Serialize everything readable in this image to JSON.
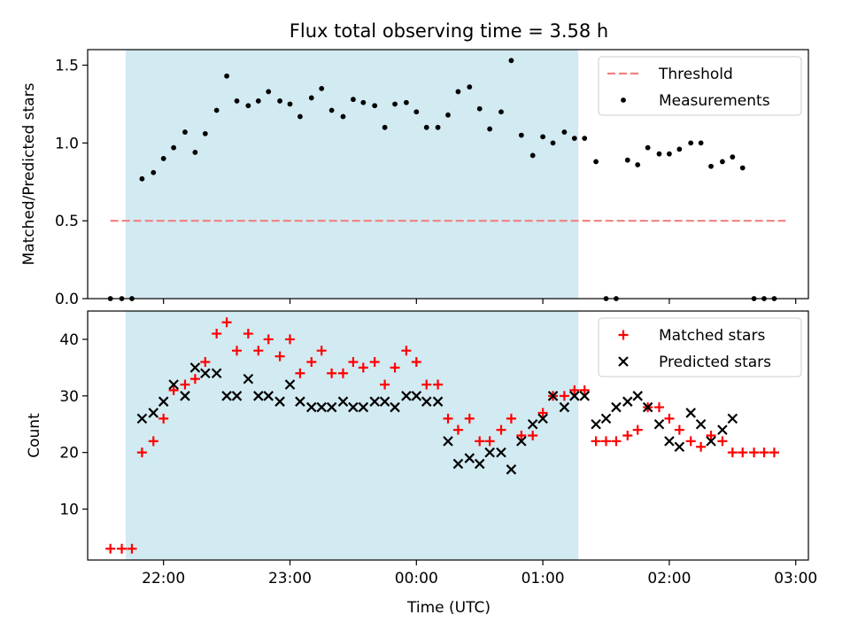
{
  "chart_data": {
    "type": "scatter",
    "title": "Flux total observing time = 3.58 h",
    "xlabel": "Time (UTC)",
    "x_unit": "hours UTC (values >= 24 are after midnight)",
    "xlim": [
      21.4,
      27.1
    ],
    "x_ticks": [
      {
        "value": 22,
        "label": "22:00"
      },
      {
        "value": 23,
        "label": "23:00"
      },
      {
        "value": 24,
        "label": "00:00"
      },
      {
        "value": 25,
        "label": "01:00"
      },
      {
        "value": 26,
        "label": "02:00"
      },
      {
        "value": 27,
        "label": "03:00"
      }
    ],
    "shaded_interval": {
      "start": 21.7,
      "end": 25.28,
      "color": "#add8e6"
    },
    "panels": [
      {
        "ylabel": "Matched/Predicted stars",
        "ylim": [
          0.0,
          1.6
        ],
        "y_ticks": [
          {
            "value": 0.0,
            "label": "0.0"
          },
          {
            "value": 0.5,
            "label": "0.5"
          },
          {
            "value": 1.0,
            "label": "1.0"
          },
          {
            "value": 1.5,
            "label": "1.5"
          }
        ],
        "legend": {
          "position": "top-right",
          "entries": [
            "Threshold",
            "Measurements"
          ]
        },
        "threshold": {
          "name": "Threshold",
          "value": 0.5,
          "x_range": [
            21.58,
            26.92
          ],
          "color": "#f08080"
        },
        "series": [
          {
            "name": "Measurements",
            "color": "#000000",
            "marker": "dot",
            "x": [
              21.58,
              21.67,
              21.75,
              21.83,
              21.92,
              22.0,
              22.08,
              22.17,
              22.25,
              22.33,
              22.42,
              22.5,
              22.58,
              22.67,
              22.75,
              22.83,
              22.92,
              23.0,
              23.08,
              23.17,
              23.25,
              23.33,
              23.42,
              23.5,
              23.58,
              23.67,
              23.75,
              23.83,
              23.92,
              24.0,
              24.08,
              24.17,
              24.25,
              24.33,
              24.42,
              24.5,
              24.58,
              24.67,
              24.75,
              24.83,
              24.92,
              25.0,
              25.08,
              25.17,
              25.25,
              25.33,
              25.42,
              25.5,
              25.58,
              25.67,
              25.75,
              25.83,
              25.92,
              26.0,
              26.08,
              26.17,
              26.25,
              26.33,
              26.42,
              26.5,
              26.58,
              26.67,
              26.75,
              26.83
            ],
            "y": [
              0.0,
              0.0,
              0.0,
              0.77,
              0.81,
              0.9,
              0.97,
              1.07,
              0.94,
              1.06,
              1.21,
              1.43,
              1.27,
              1.24,
              1.27,
              1.33,
              1.27,
              1.25,
              1.17,
              1.29,
              1.35,
              1.21,
              1.17,
              1.28,
              1.26,
              1.24,
              1.1,
              1.25,
              1.26,
              1.2,
              1.1,
              1.1,
              1.18,
              1.33,
              1.36,
              1.22,
              1.09,
              1.2,
              1.53,
              1.05,
              0.92,
              1.04,
              1.0,
              1.07,
              1.03,
              1.03,
              0.88,
              0.0,
              0.0,
              0.89,
              0.86,
              0.97,
              0.93,
              0.93,
              0.96,
              1.0,
              1.0,
              0.85,
              0.88,
              0.91,
              0.84,
              0.0,
              0.0,
              0.0
            ]
          }
        ]
      },
      {
        "ylabel": "Count",
        "ylim": [
          1,
          45
        ],
        "y_ticks": [
          {
            "value": 10,
            "label": "10"
          },
          {
            "value": 20,
            "label": "20"
          },
          {
            "value": 30,
            "label": "30"
          },
          {
            "value": 40,
            "label": "40"
          }
        ],
        "legend": {
          "position": "top-right",
          "entries": [
            "Matched stars",
            "Predicted stars"
          ]
        },
        "series": [
          {
            "name": "Matched stars",
            "color": "#ff0000",
            "marker": "plus",
            "x": [
              21.58,
              21.67,
              21.75,
              21.83,
              21.92,
              22.0,
              22.08,
              22.17,
              22.25,
              22.33,
              22.42,
              22.5,
              22.58,
              22.67,
              22.75,
              22.83,
              22.92,
              23.0,
              23.08,
              23.17,
              23.25,
              23.33,
              23.42,
              23.5,
              23.58,
              23.67,
              23.75,
              23.83,
              23.92,
              24.0,
              24.08,
              24.17,
              24.25,
              24.33,
              24.42,
              24.5,
              24.58,
              24.67,
              24.75,
              24.83,
              24.92,
              25.0,
              25.08,
              25.17,
              25.25,
              25.33,
              25.42,
              25.5,
              25.58,
              25.67,
              25.75,
              25.83,
              25.92,
              26.0,
              26.08,
              26.17,
              26.25,
              26.33,
              26.42,
              26.5,
              26.58,
              26.67,
              26.75,
              26.83
            ],
            "y": [
              3,
              3,
              3,
              20,
              22,
              26,
              31,
              32,
              33,
              36,
              41,
              43,
              38,
              41,
              38,
              40,
              37,
              40,
              34,
              36,
              38,
              34,
              34,
              36,
              35,
              36,
              32,
              35,
              38,
              36,
              32,
              32,
              26,
              24,
              26,
              22,
              22,
              24,
              26,
              23,
              23,
              27,
              30,
              30,
              31,
              31,
              22,
              22,
              22,
              23,
              24,
              28,
              28,
              26,
              24,
              22,
              21,
              23,
              22,
              20,
              20,
              20,
              20,
              20
            ]
          },
          {
            "name": "Predicted stars",
            "color": "#000000",
            "marker": "x",
            "x": [
              21.83,
              21.92,
              22.0,
              22.08,
              22.17,
              22.25,
              22.33,
              22.42,
              22.5,
              22.58,
              22.67,
              22.75,
              22.83,
              22.92,
              23.0,
              23.08,
              23.17,
              23.25,
              23.33,
              23.42,
              23.5,
              23.58,
              23.67,
              23.75,
              23.83,
              23.92,
              24.0,
              24.08,
              24.17,
              24.25,
              24.33,
              24.42,
              24.5,
              24.58,
              24.67,
              24.75,
              24.83,
              24.92,
              25.0,
              25.08,
              25.17,
              25.25,
              25.33,
              25.42,
              25.5,
              25.58,
              25.67,
              25.75,
              25.83,
              25.92,
              26.0,
              26.08,
              26.17,
              26.25,
              26.33,
              26.42,
              26.5
            ],
            "y": [
              26,
              27,
              29,
              32,
              30,
              35,
              34,
              34,
              30,
              30,
              33,
              30,
              30,
              29,
              32,
              29,
              28,
              28,
              28,
              29,
              28,
              28,
              29,
              29,
              28,
              30,
              30,
              29,
              29,
              22,
              18,
              19,
              18,
              20,
              20,
              17,
              22,
              25,
              26,
              30,
              28,
              30,
              30,
              25,
              26,
              28,
              29,
              30,
              28,
              25,
              22,
              21,
              27,
              25,
              22,
              24,
              26
            ]
          }
        ]
      }
    ]
  }
}
